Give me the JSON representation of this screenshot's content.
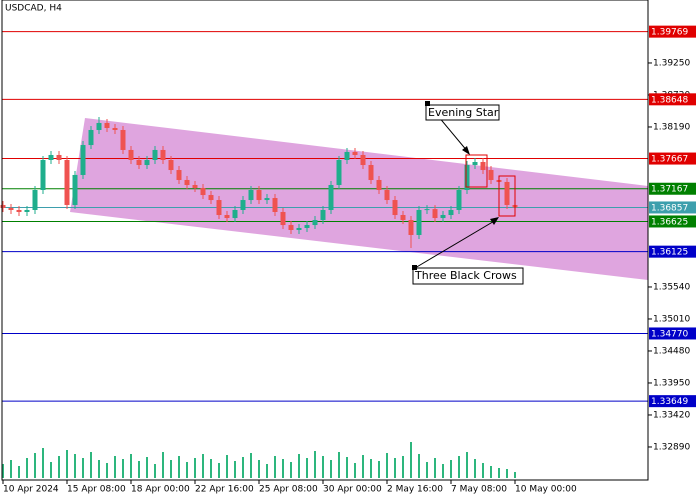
{
  "chart_data": {
    "type": "candlestick",
    "title": "USDCAD, H4",
    "ylim": [
      1.32343,
      1.40293
    ],
    "yticks": [
      {
        "value": 1.3925,
        "label": "1.39250"
      },
      {
        "value": 1.3872,
        "label": "1.38720"
      },
      {
        "value": 1.3819,
        "label": "1.38190"
      },
      {
        "value": 1.3554,
        "label": "1.35540"
      },
      {
        "value": 1.3501,
        "label": "1.35010"
      },
      {
        "value": 1.3448,
        "label": "1.34480"
      },
      {
        "value": 1.3395,
        "label": "1.33950"
      },
      {
        "value": 1.3342,
        "label": "1.33420"
      },
      {
        "value": 1.3289,
        "label": "1.32890"
      }
    ],
    "levels": [
      {
        "value": 1.39769,
        "color": "#e00000"
      },
      {
        "value": 1.38648,
        "color": "#e00000"
      },
      {
        "value": 1.37667,
        "color": "#e00000"
      },
      {
        "value": 1.37167,
        "color": "#008000"
      },
      {
        "value": 1.36857,
        "color": "#3d9fad"
      },
      {
        "value": 1.36625,
        "color": "#008000"
      },
      {
        "value": 1.36125,
        "color": "#0000c8"
      },
      {
        "value": 1.3477,
        "label": "1.34770",
        "color": "#0000c8"
      },
      {
        "value": 1.33649,
        "color": "#0000c8"
      }
    ],
    "xticks": [
      {
        "value": 0,
        "label": "10 Apr 2024"
      },
      {
        "value": 8,
        "label": "15 Apr 08:00"
      },
      {
        "value": 16,
        "label": "18 Apr 00:00"
      },
      {
        "value": 24,
        "label": "22 Apr 16:00"
      },
      {
        "value": 32,
        "label": "25 Apr 08:00"
      },
      {
        "value": 40,
        "label": "30 Apr 00:00"
      },
      {
        "value": 48,
        "label": "2 May 16:00"
      },
      {
        "value": 56,
        "label": "7 May 08:00"
      },
      {
        "value": 64,
        "label": "10 May 00:00"
      }
    ],
    "up_color": "#1fae8c",
    "down_color": "#ef5350",
    "volume_color": "#2db67d",
    "candles": [
      [
        1.36898,
        1.36964,
        1.36782,
        1.36848
      ],
      [
        1.36848,
        1.36914,
        1.36749,
        1.36815
      ],
      [
        1.36815,
        1.36881,
        1.36716,
        1.36782
      ],
      [
        1.36782,
        1.36881,
        1.36716,
        1.36815
      ],
      [
        1.36815,
        1.37212,
        1.36749,
        1.37146
      ],
      [
        1.37146,
        1.37709,
        1.3708,
        1.37643
      ],
      [
        1.37643,
        1.37792,
        1.37577,
        1.37726
      ],
      [
        1.37726,
        1.37792,
        1.37577,
        1.37643
      ],
      [
        1.37643,
        1.37709,
        1.36832,
        1.36898
      ],
      [
        1.36898,
        1.37461,
        1.36832,
        1.37395
      ],
      [
        1.37395,
        1.37957,
        1.37329,
        1.37891
      ],
      [
        1.37891,
        1.38206,
        1.37825,
        1.3814
      ],
      [
        1.3814,
        1.38355,
        1.38074,
        1.38256
      ],
      [
        1.38256,
        1.38322,
        1.38107,
        1.38173
      ],
      [
        1.38173,
        1.38239,
        1.38074,
        1.3814
      ],
      [
        1.3814,
        1.38206,
        1.37743,
        1.37809
      ],
      [
        1.37809,
        1.37875,
        1.37577,
        1.37643
      ],
      [
        1.37643,
        1.37709,
        1.37494,
        1.3756
      ],
      [
        1.3756,
        1.37709,
        1.37494,
        1.37643
      ],
      [
        1.37643,
        1.37875,
        1.37577,
        1.37809
      ],
      [
        1.37809,
        1.37875,
        1.37577,
        1.37643
      ],
      [
        1.37643,
        1.37709,
        1.37411,
        1.37477
      ],
      [
        1.37477,
        1.37543,
        1.37246,
        1.37312
      ],
      [
        1.37312,
        1.37378,
        1.37163,
        1.37229
      ],
      [
        1.37229,
        1.37295,
        1.37113,
        1.37179
      ],
      [
        1.37179,
        1.37245,
        1.36997,
        1.37063
      ],
      [
        1.37063,
        1.37129,
        1.36914,
        1.3698
      ],
      [
        1.3698,
        1.37046,
        1.36666,
        1.36732
      ],
      [
        1.36732,
        1.36798,
        1.36616,
        1.36682
      ],
      [
        1.36682,
        1.36881,
        1.36616,
        1.36815
      ],
      [
        1.36815,
        1.37046,
        1.36749,
        1.3698
      ],
      [
        1.3698,
        1.37212,
        1.36914,
        1.37146
      ],
      [
        1.37146,
        1.37212,
        1.36914,
        1.3698
      ],
      [
        1.3698,
        1.37079,
        1.36914,
        1.37013
      ],
      [
        1.37013,
        1.37079,
        1.36716,
        1.36782
      ],
      [
        1.36782,
        1.36848,
        1.365,
        1.36566
      ],
      [
        1.36566,
        1.36632,
        1.36418,
        1.36484
      ],
      [
        1.36484,
        1.36583,
        1.36418,
        1.36517
      ],
      [
        1.36517,
        1.36632,
        1.36451,
        1.36566
      ],
      [
        1.36566,
        1.36715,
        1.365,
        1.36649
      ],
      [
        1.36649,
        1.36881,
        1.36583,
        1.36815
      ],
      [
        1.36815,
        1.37295,
        1.36749,
        1.37229
      ],
      [
        1.37229,
        1.37709,
        1.37163,
        1.37643
      ],
      [
        1.37643,
        1.37842,
        1.37577,
        1.37776
      ],
      [
        1.37776,
        1.37842,
        1.3766,
        1.37726
      ],
      [
        1.37726,
        1.37792,
        1.37494,
        1.3756
      ],
      [
        1.3756,
        1.37626,
        1.37246,
        1.37312
      ],
      [
        1.37312,
        1.37378,
        1.3708,
        1.37146
      ],
      [
        1.37146,
        1.37212,
        1.36914,
        1.3698
      ],
      [
        1.3698,
        1.37046,
        1.36666,
        1.36732
      ],
      [
        1.36732,
        1.36798,
        1.36583,
        1.36649
      ],
      [
        1.36649,
        1.36715,
        1.36185,
        1.36401
      ],
      [
        1.36401,
        1.36881,
        1.36335,
        1.36815
      ],
      [
        1.36815,
        1.36896,
        1.36749,
        1.3683
      ],
      [
        1.3683,
        1.36896,
        1.36616,
        1.36682
      ],
      [
        1.36682,
        1.36798,
        1.36616,
        1.36732
      ],
      [
        1.36732,
        1.36881,
        1.36666,
        1.36815
      ],
      [
        1.36815,
        1.37212,
        1.36749,
        1.37146
      ],
      [
        1.37146,
        1.37626,
        1.3708,
        1.3756
      ],
      [
        1.3756,
        1.37676,
        1.37494,
        1.3761
      ],
      [
        1.3761,
        1.37676,
        1.37411,
        1.37477
      ],
      [
        1.37477,
        1.37543,
        1.37246,
        1.37312
      ],
      [
        1.37312,
        1.37378,
        1.37213,
        1.37279
      ],
      [
        1.37279,
        1.37345,
        1.36832,
        1.36898
      ],
      [
        1.36898,
        1.36964,
        1.36791,
        1.36857
      ]
    ],
    "volumes": [
      14,
      18,
      12,
      20,
      25,
      30,
      16,
      22,
      28,
      24,
      20,
      26,
      18,
      15,
      22,
      19,
      24,
      17,
      21,
      14,
      26,
      18,
      22,
      16,
      20,
      24,
      19,
      15,
      23,
      17,
      21,
      25,
      18,
      14,
      22,
      19,
      16,
      24,
      20,
      27,
      22,
      18,
      26,
      21,
      15,
      23,
      19,
      17,
      25,
      20,
      22,
      36,
      24,
      16,
      20,
      14,
      18,
      22,
      26,
      19,
      15,
      12,
      10,
      9,
      6
    ],
    "annotations": [
      {
        "text": "Evening Star"
      },
      {
        "text": "Three Black Crows"
      }
    ]
  }
}
